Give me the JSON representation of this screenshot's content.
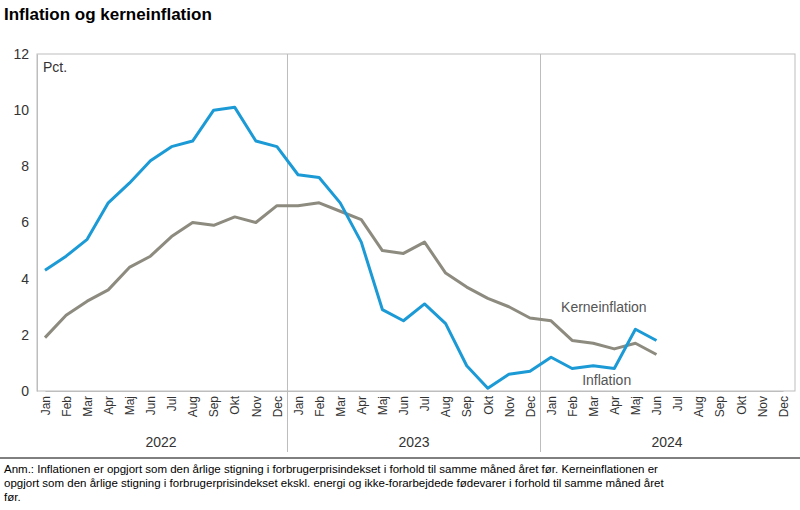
{
  "chart_data": {
    "type": "line",
    "title": "Inflation og kerneinflation",
    "y_label": "Pct.",
    "categories": [
      "Jan",
      "Feb",
      "Mar",
      "Apr",
      "Maj",
      "Jun",
      "Jul",
      "Aug",
      "Sep",
      "Okt",
      "Nov",
      "Dec",
      "Jan",
      "Feb",
      "Mar",
      "Apr",
      "Maj",
      "Jun",
      "Jul",
      "Aug",
      "Sep",
      "Okt",
      "Nov",
      "Dec",
      "Jan",
      "Feb",
      "Mar",
      "Apr",
      "Maj",
      "Jun",
      "Jul",
      "Aug",
      "Sep",
      "Okt",
      "Nov",
      "Dec"
    ],
    "year_labels": [
      "2022",
      "2023",
      "2024"
    ],
    "series": [
      {
        "name": "Inflation",
        "color": "#1b9ad6",
        "values": [
          4.3,
          4.8,
          5.4,
          6.7,
          7.4,
          8.2,
          8.7,
          8.9,
          10.0,
          10.1,
          8.9,
          8.7,
          7.7,
          7.6,
          6.7,
          5.3,
          2.9,
          2.5,
          3.1,
          2.4,
          0.9,
          0.1,
          0.6,
          0.7,
          1.2,
          0.8,
          0.9,
          0.8,
          2.2,
          1.8,
          null,
          null,
          null,
          null,
          null,
          null
        ]
      },
      {
        "name": "Kerneinflation",
        "color": "#8d8b7f",
        "values": [
          1.9,
          2.7,
          3.2,
          3.6,
          4.4,
          4.8,
          5.5,
          6.0,
          5.9,
          6.2,
          6.0,
          6.6,
          6.6,
          6.7,
          6.4,
          6.1,
          5.0,
          4.9,
          5.3,
          4.2,
          3.7,
          3.3,
          3.0,
          2.6,
          2.5,
          1.8,
          1.7,
          1.5,
          1.7,
          1.3,
          null,
          null,
          null,
          null,
          null,
          null
        ]
      }
    ],
    "ylim": [
      0,
      12
    ],
    "yticks": [
      0,
      2,
      4,
      6,
      8,
      10,
      12
    ],
    "grid": false,
    "note": [
      "Anm.: Inflationen er opgjort som den årlige stigning i forbrugerprisindekset i forhold til samme måned året før. Kerneinflationen er",
      "opgjort som den årlige stigning i forbrugerprisindekset ekskl. energi og ikke-forarbejdede fødevarer i forhold til samme måned året",
      "før."
    ]
  }
}
